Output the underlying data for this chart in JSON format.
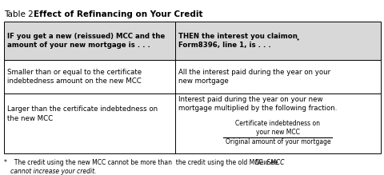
{
  "title_prefix": "Table 2.  ",
  "title_bold": "Effect of Refinancing on Your Credit",
  "col1_header": "IF you get a new (reissued) MCC and the\namount of your new mortgage is . . .",
  "col2_header": "THEN the interest you claimon\nForm8396, line 1, is . . .",
  "col2_header_star": "*",
  "row1_col1": "Smaller than or equal to the certificate\nindebtedness amount on the new MCC",
  "row1_col2": "All the interest paid during the year on your\nnew mortgage",
  "row2_col1": "Larger than the certificate indebtedness on\nthe new MCC",
  "row2_col2_top": "Interest paid during the year on your new\nmortgage multiplied by the following fraction.",
  "row2_fraction_num": "Certificate indebtedness on\nyour new MCC",
  "row2_fraction_den": "Original amount of your mortgage",
  "footnote_line1_normal": "  The credit using the new MCC cannot be more than  the credit using the old MCC. See ",
  "footnote_line1_italic": "New MCC",
  "footnote_line2_italic": "cannot increase your credit.",
  "footnote_star": "*",
  "bg_color": "#ffffff",
  "border_color": "#000000",
  "header_bg": "#d8d8d8",
  "col_split": 0.455,
  "fig_width": 4.81,
  "fig_height": 2.19,
  "dpi": 100
}
